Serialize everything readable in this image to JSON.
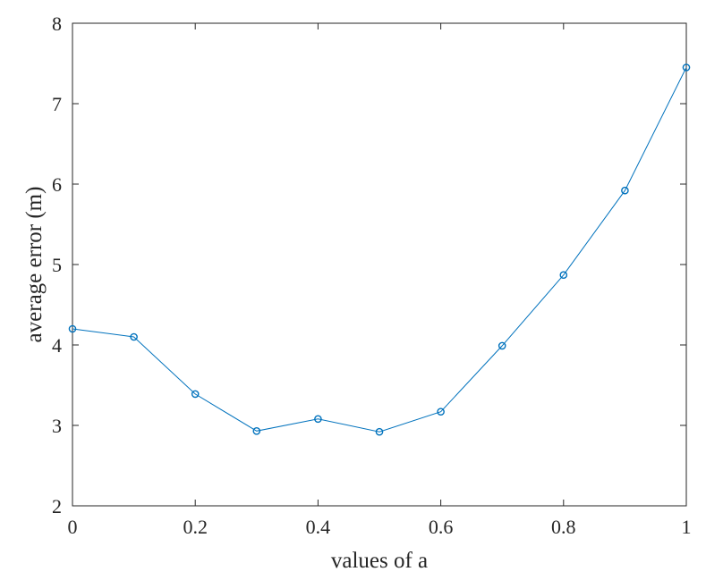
{
  "chart_data": {
    "type": "line",
    "title": "",
    "xlabel": "values of a",
    "ylabel": "average error (m)",
    "xlim": [
      0,
      1
    ],
    "ylim": [
      2,
      8
    ],
    "grid": false,
    "legend": "none",
    "x_ticks": [
      "0",
      "0.2",
      "0.4",
      "0.6",
      "0.8",
      "1"
    ],
    "y_ticks": [
      "2",
      "3",
      "4",
      "5",
      "6",
      "7",
      "8"
    ],
    "series": [
      {
        "x": [
          0,
          0.1,
          0.2,
          0.3,
          0.4,
          0.5,
          0.6,
          0.7,
          0.8,
          0.9,
          1.0
        ],
        "y": [
          4.2,
          4.1,
          3.39,
          2.93,
          3.08,
          2.92,
          3.17,
          3.99,
          4.87,
          5.92,
          7.45
        ],
        "color": "#0072BD",
        "marker": "circle"
      }
    ]
  }
}
